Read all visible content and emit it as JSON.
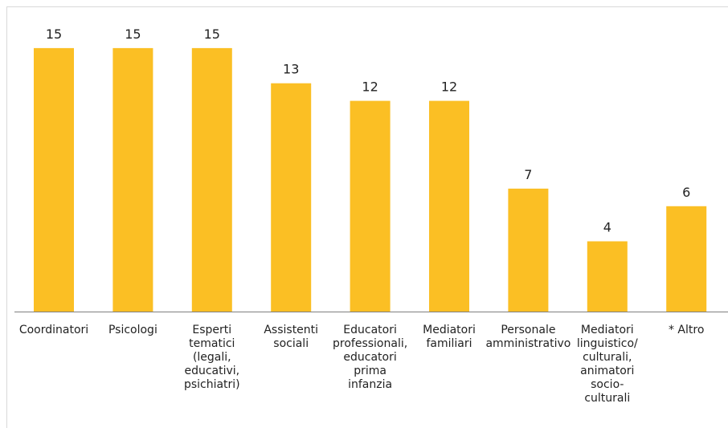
{
  "chart_data": {
    "type": "bar",
    "categories": [
      [
        "Coordinatori"
      ],
      [
        "Psicologi"
      ],
      [
        "Esperti",
        "tematici",
        "(legali,",
        "educativi,",
        "psichiatri)"
      ],
      [
        "Assistenti",
        "sociali"
      ],
      [
        "Educatori",
        "professionali,",
        "educatori",
        "prima",
        "infanzia"
      ],
      [
        "Mediatori",
        "familiari"
      ],
      [
        "Personale",
        "amministrativo"
      ],
      [
        "Mediatori",
        "linguistico/",
        "culturali,",
        "animatori",
        "socio-",
        "culturali"
      ],
      [
        "* Altro"
      ]
    ],
    "values": [
      15,
      15,
      15,
      13,
      12,
      12,
      7,
      4,
      6
    ],
    "data_labels": [
      "15",
      "15",
      "15",
      "13",
      "12",
      "12",
      "7",
      "4",
      "6"
    ],
    "ylim": [
      0,
      16
    ],
    "bar_color": "#FBBF24",
    "axis_color": "#7f7f7f",
    "grid": false,
    "legend": "none"
  }
}
